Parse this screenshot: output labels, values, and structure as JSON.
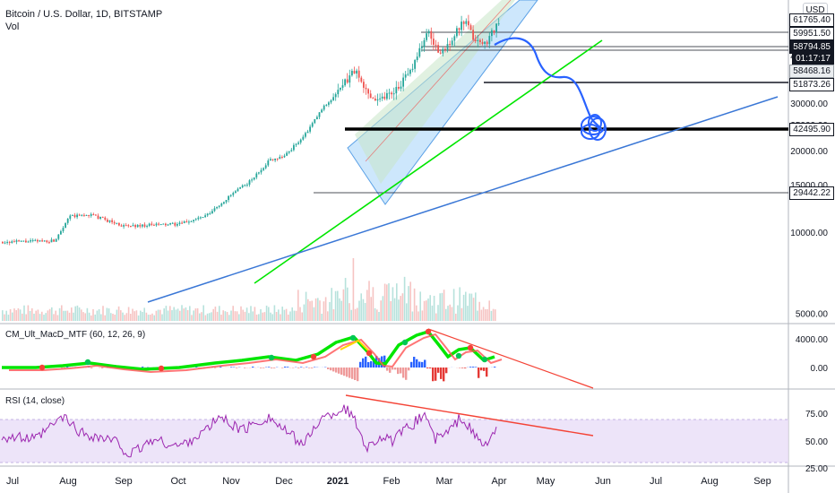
{
  "header": {
    "title": "Bitcoin / U.S. Dollar, 1D, BITSTAMP",
    "vol_label": "Vol",
    "currency": "USD"
  },
  "price_tags": [
    {
      "value": "61765.40",
      "style": "light"
    },
    {
      "value": "59951.50",
      "style": "light"
    },
    {
      "value": "58794.85",
      "style": "dark",
      "sub": "01:17:17"
    },
    {
      "value": "58468.16",
      "style": "gray"
    },
    {
      "value": "51873.26",
      "style": "light"
    },
    {
      "value": "42495.90",
      "style": "light"
    },
    {
      "value": "29442.22",
      "style": "light"
    }
  ],
  "macd": {
    "label": "CM_Ult_MacD_MTF (60, 12, 26, 9)",
    "ticks": [
      "4000.00",
      "0.00"
    ]
  },
  "rsi": {
    "label": "RSI (14, close)",
    "ticks": [
      "75.00",
      "50.00",
      "25.00"
    ]
  },
  "x_axis_labels": [
    "Jul",
    "Aug",
    "Sep",
    "Oct",
    "Nov",
    "Dec",
    "2021",
    "Feb",
    "Mar",
    "Apr",
    "May",
    "Jun",
    "Jul",
    "Aug",
    "Sep"
  ],
  "colors": {
    "up": "#26a69a",
    "down": "#ef5350",
    "channel_fill": "#90caf9",
    "channel_mid_fill": "#c8e6c9",
    "trend_green": "#00e600",
    "trend_blue": "#3a77d6",
    "projection": "#2962ff",
    "rsi_band": "#e9ddf7",
    "rsi_line": "#9c27b0"
  },
  "chart_data": {
    "type": "candlestick",
    "symbol": "BTCUSD",
    "exchange": "BITSTAMP",
    "interval": "1D",
    "y_scale": "log",
    "y_ticks": [
      5000,
      10000,
      15000,
      20000,
      25000,
      30000,
      35000,
      40000,
      45000,
      50000
    ],
    "ohlc_anchor": [
      [
        "Jul",
        9200
      ],
      [
        "Aug",
        11400
      ],
      [
        "Sep",
        10800
      ],
      [
        "Oct",
        10600
      ],
      [
        "Nov",
        13800
      ],
      [
        "Dec",
        19000
      ],
      [
        "2021",
        29000
      ],
      [
        "Feb",
        33000
      ],
      [
        "Mar",
        47000
      ],
      [
        "Apr",
        58800
      ]
    ],
    "horizontal_levels": [
      61765.4,
      59951.5,
      58468.16,
      51873.26,
      42495.9,
      29442.22
    ],
    "indicators": [
      {
        "name": "CM_Ult_MacD_MTF",
        "params": [
          60,
          12,
          26,
          9
        ]
      },
      {
        "name": "RSI",
        "params": [
          14,
          "close"
        ]
      }
    ]
  }
}
